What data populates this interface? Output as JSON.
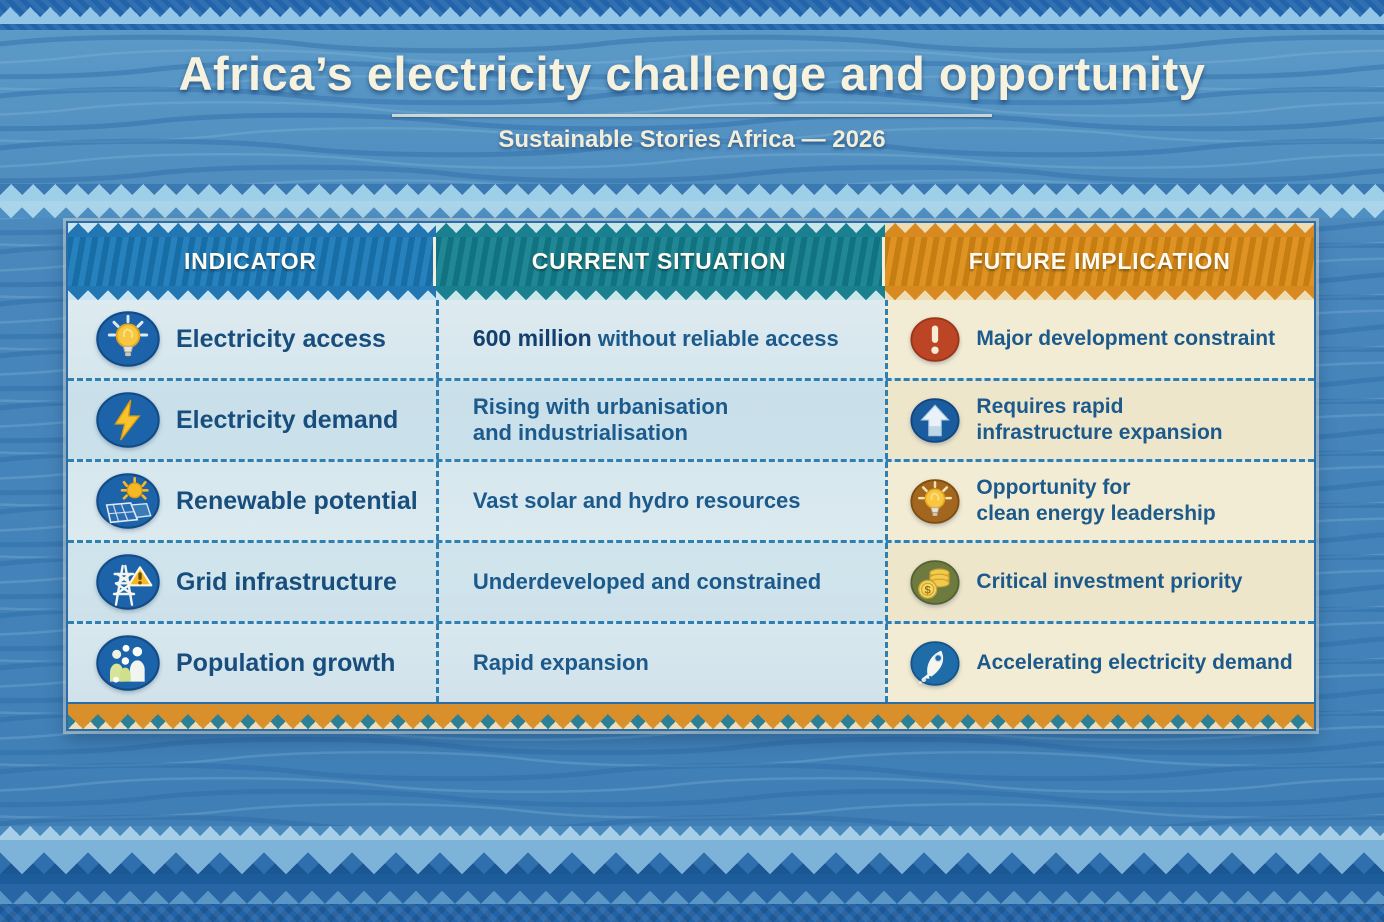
{
  "title": "Africa’s electricity challenge and opportunity",
  "subtitle": "Sustainable Stories Africa — 2026",
  "table": {
    "columns": [
      "INDICATOR",
      "CURRENT SITUATION",
      "FUTURE IMPLICATION"
    ],
    "rows": [
      {
        "indicator": "Electricity access",
        "indicator_icon": "lightbulb-icon",
        "current": {
          "strong": "600 million",
          "lines": [
            "without reliable access"
          ]
        },
        "future": {
          "icon": "alert-icon",
          "lines": [
            "Major development constraint"
          ]
        }
      },
      {
        "indicator": "Electricity demand",
        "indicator_icon": "lightning-icon",
        "current": {
          "strong": "",
          "lines": [
            "Rising with urbanisation",
            "and industrialisation"
          ]
        },
        "future": {
          "icon": "arrow-up-icon",
          "lines": [
            "Requires rapid",
            "infrastructure expansion"
          ]
        }
      },
      {
        "indicator": "Renewable potential",
        "indicator_icon": "solar-panel-icon",
        "current": {
          "strong": "",
          "lines": [
            "Vast solar and hydro resources"
          ]
        },
        "future": {
          "icon": "bulb-opportunity-icon",
          "lines": [
            "Opportunity for",
            "clean energy leadership"
          ]
        }
      },
      {
        "indicator": "Grid infrastructure",
        "indicator_icon": "grid-tower-icon",
        "current": {
          "strong": "",
          "lines": [
            "Underdeveloped and constrained"
          ]
        },
        "future": {
          "icon": "coins-icon",
          "lines": [
            "Critical investment priority"
          ]
        }
      },
      {
        "indicator": "Population growth",
        "indicator_icon": "population-icon",
        "current": {
          "strong": "",
          "lines": [
            "Rapid expansion"
          ]
        },
        "future": {
          "icon": "rocket-icon",
          "lines": [
            "Accelerating electricity demand"
          ]
        }
      }
    ]
  },
  "colors": {
    "header_indicator": "#1a79b8",
    "header_current": "#14808e",
    "header_future": "#dd8c15",
    "text_navy": "#1c5a8c",
    "label_navy": "#174e7e",
    "card_blue_bg": "#d3e5ec",
    "card_cream_bg": "#f3ecd4",
    "page_blue": "#4282b8",
    "title_cream": "#f7f2dd"
  },
  "chart_data": {
    "type": "table",
    "title": "Africa's electricity challenge and opportunity",
    "subtitle": "Sustainable Stories Africa — 2026",
    "columns": [
      "INDICATOR",
      "CURRENT SITUATION",
      "FUTURE IMPLICATION"
    ],
    "rows": [
      [
        "Electricity access",
        "600 million without reliable access",
        "Major development constraint"
      ],
      [
        "Electricity demand",
        "Rising with urbanisation and industrialisation",
        "Requires rapid infrastructure expansion"
      ],
      [
        "Renewable potential",
        "Vast solar and hydro resources",
        "Opportunity for clean energy leadership"
      ],
      [
        "Grid infrastructure",
        "Underdeveloped and constrained",
        "Critical investment priority"
      ],
      [
        "Population growth",
        "Rapid expansion",
        "Accelerating electricity demand"
      ]
    ]
  }
}
